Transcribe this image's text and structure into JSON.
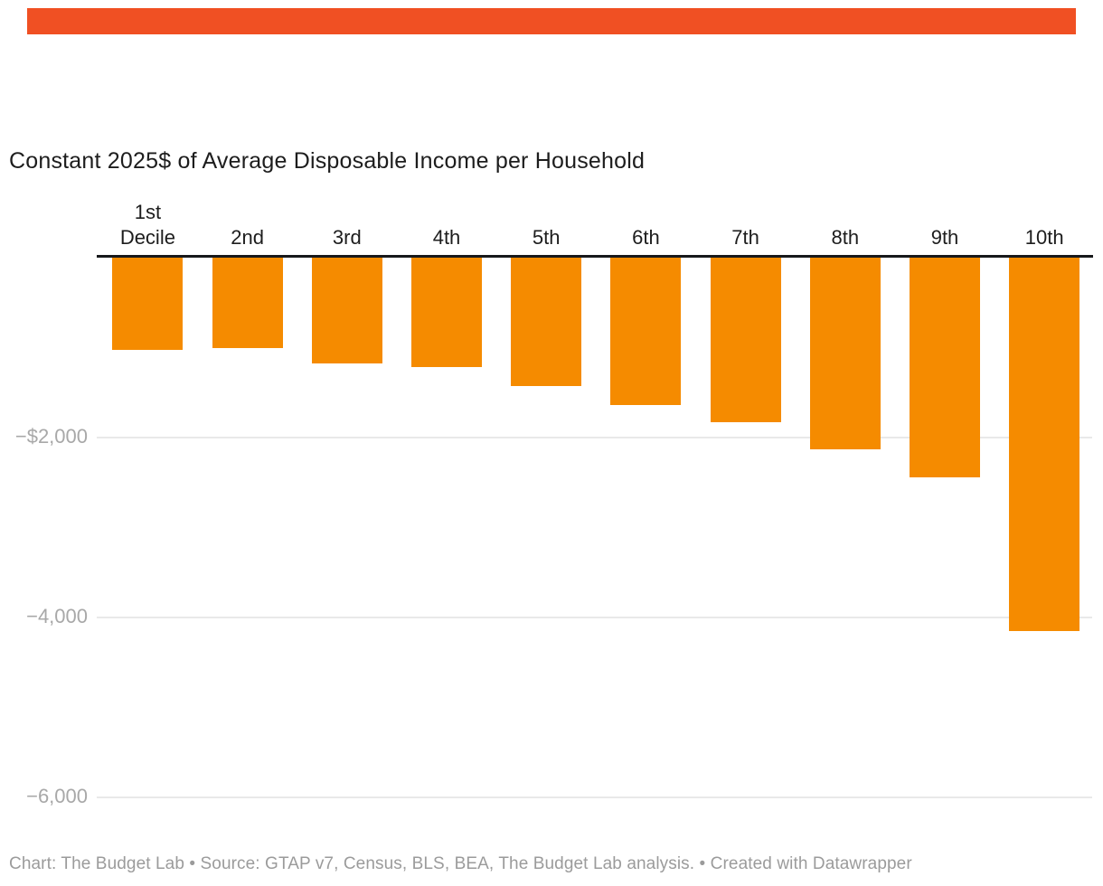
{
  "header": {
    "accent_rule_color": "#f05023"
  },
  "chart_data": {
    "type": "bar",
    "title": "Constant 2025$ of Average Disposable Income per Household",
    "categories": [
      "1st\nDecile",
      "2nd",
      "3rd",
      "4th",
      "5th",
      "6th",
      "7th",
      "8th",
      "9th",
      "10th"
    ],
    "values": [
      -1020,
      -1000,
      -1170,
      -1210,
      -1430,
      -1640,
      -1830,
      -2130,
      -2440,
      -4140
    ],
    "xlabel": "",
    "ylabel": "",
    "ylim": [
      -6400,
      0
    ],
    "grid": true,
    "legend": "none",
    "bar_color": "#f58b00",
    "zero_line_color": "#17181a",
    "gridline_color": "#e9e9e9",
    "tick_label_color": "#a8a8a8",
    "yticks": [
      {
        "label": "−$2,000",
        "value": -2000
      },
      {
        "label": "−4,000",
        "value": -4000
      },
      {
        "label": "−6,000",
        "value": -6000
      }
    ]
  },
  "footer": {
    "text": "Chart: The Budget Lab • Source: GTAP v7, Census, BLS, BEA, The Budget Lab analysis. • Created with Datawrapper"
  }
}
